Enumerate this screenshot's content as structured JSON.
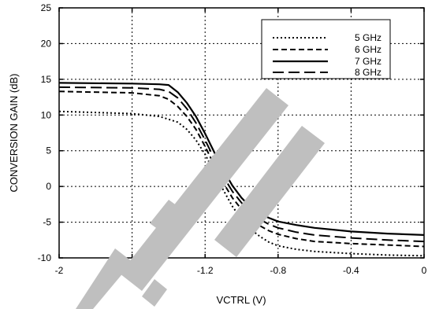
{
  "chart_data": {
    "type": "line",
    "title": "",
    "xlabel": "VCTRL (V)",
    "ylabel": "CONVERSION GAIN (dB)",
    "xlim": [
      -2,
      0
    ],
    "ylim": [
      -10,
      25
    ],
    "x_ticks": [
      -2,
      -1.6,
      -1.2,
      -0.8,
      -0.4,
      0
    ],
    "x_tick_labels": [
      "-2",
      "-1.6",
      "-1.2",
      "-0.8",
      "-0.4",
      "0"
    ],
    "y_ticks": [
      -10,
      -5,
      0,
      5,
      10,
      15,
      20,
      25
    ],
    "y_tick_labels": [
      "-10",
      "-5",
      "0",
      "5",
      "10",
      "15",
      "20",
      "25"
    ],
    "grid": true,
    "legend_position": "top-right",
    "series": [
      {
        "name": "5 GHz",
        "line_style": "dotted",
        "color": "#000000",
        "x": [
          -2,
          -1.6,
          -1.45,
          -1.35,
          -1.3,
          -1.25,
          -1.2,
          -1.15,
          -1.1,
          -1.05,
          -1.0,
          -0.95,
          -0.9,
          -0.85,
          -0.8,
          -0.7,
          -0.6,
          -0.4,
          -0.2,
          0
        ],
        "y": [
          10.5,
          10.2,
          9.8,
          9.0,
          8.0,
          6.5,
          4.5,
          2.0,
          -0.5,
          -2.8,
          -4.6,
          -6.0,
          -7.0,
          -7.8,
          -8.3,
          -8.8,
          -9.1,
          -9.4,
          -9.6,
          -9.7
        ]
      },
      {
        "name": "6 GHz",
        "line_style": "dashed",
        "color": "#000000",
        "x": [
          -2,
          -1.6,
          -1.45,
          -1.4,
          -1.35,
          -1.3,
          -1.25,
          -1.2,
          -1.15,
          -1.1,
          -1.05,
          -1.0,
          -0.95,
          -0.9,
          -0.85,
          -0.8,
          -0.7,
          -0.6,
          -0.4,
          -0.2,
          0
        ],
        "y": [
          13.3,
          13.1,
          12.7,
          12.2,
          11.2,
          9.8,
          8.0,
          5.6,
          3.0,
          0.5,
          -1.6,
          -3.2,
          -4.5,
          -5.5,
          -6.2,
          -6.7,
          -7.3,
          -7.7,
          -8.0,
          -8.2,
          -8.4
        ]
      },
      {
        "name": "7 GHz",
        "line_style": "solid",
        "color": "#000000",
        "x": [
          -2,
          -1.6,
          -1.45,
          -1.4,
          -1.35,
          -1.3,
          -1.25,
          -1.2,
          -1.15,
          -1.1,
          -1.05,
          -1.0,
          -0.95,
          -0.9,
          -0.85,
          -0.8,
          -0.7,
          -0.6,
          -0.4,
          -0.2,
          0
        ],
        "y": [
          14.5,
          14.4,
          14.3,
          14.2,
          13.2,
          11.7,
          9.8,
          7.4,
          4.8,
          2.3,
          0.1,
          -1.6,
          -2.9,
          -3.8,
          -4.4,
          -4.9,
          -5.4,
          -5.8,
          -6.3,
          -6.6,
          -6.8
        ]
      },
      {
        "name": "8 GHz",
        "line_style": "long-dash",
        "color": "#000000",
        "x": [
          -2,
          -1.6,
          -1.45,
          -1.4,
          -1.35,
          -1.3,
          -1.25,
          -1.2,
          -1.15,
          -1.1,
          -1.05,
          -1.0,
          -0.95,
          -0.9,
          -0.85,
          -0.8,
          -0.7,
          -0.6,
          -0.4,
          -0.2,
          0
        ],
        "y": [
          13.9,
          13.8,
          13.6,
          13.3,
          12.4,
          10.9,
          8.9,
          6.5,
          3.9,
          1.4,
          -0.7,
          -2.3,
          -3.6,
          -4.6,
          -5.3,
          -5.8,
          -6.4,
          -6.8,
          -7.2,
          -7.5,
          -7.7
        ]
      }
    ]
  }
}
